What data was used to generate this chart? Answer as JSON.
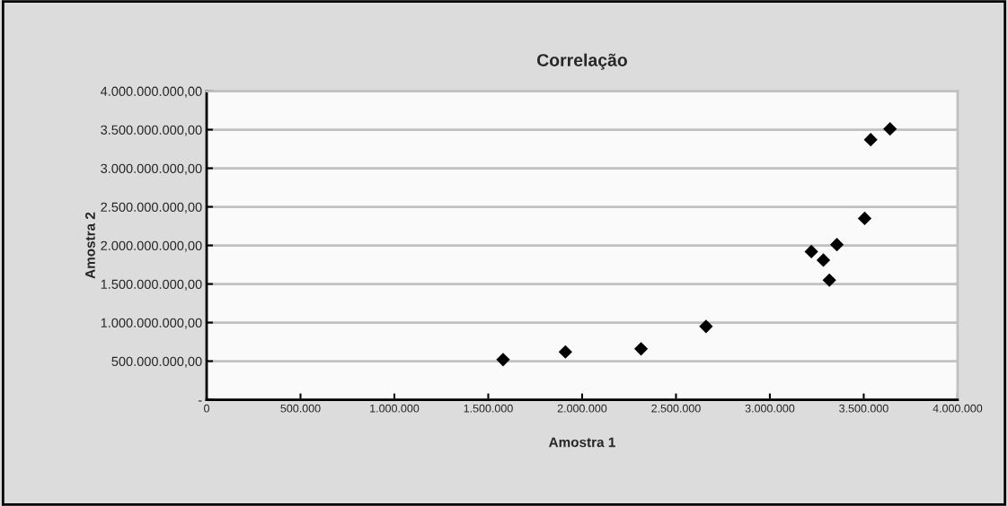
{
  "chart_data": {
    "type": "scatter",
    "title": "Correlação",
    "xlabel": "Amostra 1",
    "ylabel": "Amostra 2",
    "x": [
      1579000,
      1911000,
      2314000,
      2660000,
      3221000,
      3285000,
      3317000,
      3357000,
      3505000,
      3537000,
      3640000
    ],
    "series": [
      {
        "color": "#000000",
        "values": [
          520000000,
          620000000,
          660000000,
          950000000,
          1920000000,
          1810000000,
          1550000000,
          2010000000,
          2350000000,
          3370000000,
          3510000000
        ]
      }
    ],
    "marker": "diamond",
    "grid": "y",
    "legend": false,
    "xlim": [
      0,
      4000000
    ],
    "xticks": [
      {
        "value": 0,
        "label": "0"
      },
      {
        "value": 500000,
        "label": "500.000"
      },
      {
        "value": 1000000,
        "label": "1.000.000"
      },
      {
        "value": 1500000,
        "label": "1.500.000"
      },
      {
        "value": 2000000,
        "label": "2.000.000"
      },
      {
        "value": 2500000,
        "label": "2.500.000"
      },
      {
        "value": 3000000,
        "label": "3.000.000"
      },
      {
        "value": 3500000,
        "label": "3.500.000"
      },
      {
        "value": 4000000,
        "label": "4.000.000"
      }
    ],
    "ylim": [
      0,
      4000000000
    ],
    "yticks": [
      {
        "value": 0,
        "label": "-"
      },
      {
        "value": 500000000,
        "label": "500.000.000,00"
      },
      {
        "value": 1000000000,
        "label": "1.000.000.000,00"
      },
      {
        "value": 1500000000,
        "label": "1.500.000.000,00"
      },
      {
        "value": 2000000000,
        "label": "2.000.000.000,00"
      },
      {
        "value": 2500000000,
        "label": "2.500.000.000,00"
      },
      {
        "value": 3000000000,
        "label": "3.000.000.000,00"
      },
      {
        "value": 3500000000,
        "label": "3.500.000.000,00"
      },
      {
        "value": 4000000000,
        "label": "4.000.000.000,00"
      }
    ]
  }
}
